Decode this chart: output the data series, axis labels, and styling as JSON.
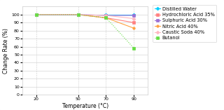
{
  "x": [
    20,
    50,
    70,
    90
  ],
  "series": [
    {
      "label": "Distilled Water",
      "color": "#00CFFF",
      "values": [
        100,
        100,
        100,
        100
      ],
      "linestyle": "-",
      "marker": "D",
      "markersize": 2.5
    },
    {
      "label": "Hydrochloric Acid 35%",
      "color": "#FF8080",
      "values": [
        100,
        100,
        96,
        90
      ],
      "linestyle": "-",
      "marker": "s",
      "markersize": 2.5
    },
    {
      "label": "Sulphuric Acid 30%",
      "color": "#9B6FD4",
      "values": [
        100,
        100,
        99,
        99
      ],
      "linestyle": "-",
      "marker": "s",
      "markersize": 2.5
    },
    {
      "label": "Nitric Acid 40%",
      "color": "#FFA040",
      "values": [
        100,
        100,
        96,
        83
      ],
      "linestyle": "-",
      "marker": "o",
      "markersize": 2.5
    },
    {
      "label": "Caustic Soda 40%",
      "color": "#FFB6C1",
      "values": [
        100,
        100,
        99,
        95
      ],
      "linestyle": "-",
      "marker": "D",
      "markersize": 2.5
    },
    {
      "label": "Butanol",
      "color": "#66DD44",
      "values": [
        100,
        100,
        96,
        58
      ],
      "linestyle": ":",
      "marker": "s",
      "markersize": 2.5
    }
  ],
  "xlabel": "Temperature (°C)",
  "ylabel": "Change Rate (%)",
  "xlim": [
    10,
    100
  ],
  "ylim": [
    0,
    110
  ],
  "xticks": [
    20,
    50,
    70,
    90
  ],
  "yticks": [
    0,
    10,
    20,
    30,
    40,
    50,
    60,
    70,
    80,
    90,
    100
  ],
  "grid_color": "#CCCCCC",
  "background_color": "#FFFFFF",
  "legend_fontsize": 4.8,
  "axis_fontsize": 5.5,
  "tick_fontsize": 4.5
}
